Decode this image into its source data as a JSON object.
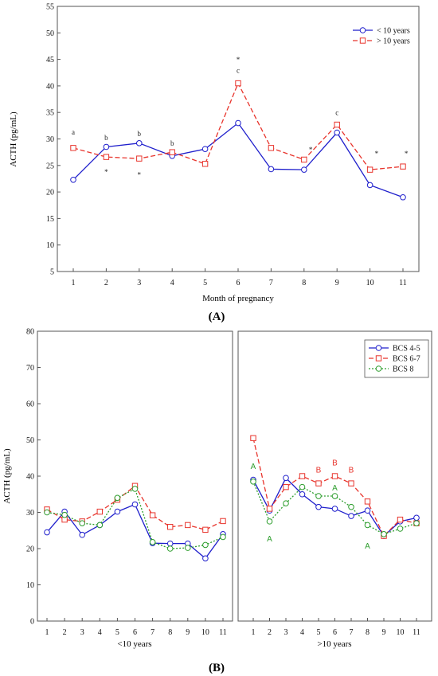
{
  "panel_labels": {
    "a": "(A)",
    "b": "(B)"
  },
  "chart_data": [
    {
      "type": "line",
      "panel": "(A)",
      "xlabel": "Month of pregnancy",
      "ylabel": "ACTH (pg/mL)",
      "ylim": [
        5,
        55
      ],
      "yticks": [
        5,
        10,
        15,
        20,
        25,
        30,
        35,
        40,
        45,
        50,
        55
      ],
      "x": [
        1,
        2,
        3,
        4,
        5,
        6,
        7,
        8,
        9,
        10,
        11
      ],
      "grid": false,
      "legend_position": "top-right",
      "series": [
        {
          "name": "< 10 years",
          "color": "#1f1fcc",
          "dash": "solid",
          "marker": "circle",
          "values": [
            22.3,
            28.5,
            29.2,
            26.8,
            28.1,
            33.0,
            24.3,
            24.2,
            31.2,
            21.3,
            19.0
          ]
        },
        {
          "name": "> 10 years",
          "color": "#e8342c",
          "dash": "dashed",
          "marker": "square",
          "values": [
            28.3,
            26.6,
            26.3,
            27.5,
            25.3,
            40.5,
            28.3,
            26.1,
            32.7,
            24.2,
            24.8
          ]
        }
      ],
      "annotations": [
        {
          "x": 1,
          "y": 30.8,
          "text": "a"
        },
        {
          "x": 2,
          "y": 29.8,
          "text": "b"
        },
        {
          "x": 3,
          "y": 30.5,
          "text": "b"
        },
        {
          "x": 4,
          "y": 28.7,
          "text": "b"
        },
        {
          "x": 6,
          "y": 44.5,
          "text": "*"
        },
        {
          "x": 6,
          "y": 42.5,
          "text": "c"
        },
        {
          "x": 9,
          "y": 34.5,
          "text": "c"
        },
        {
          "x": 2,
          "y": 23.3,
          "text": "*"
        },
        {
          "x": 3,
          "y": 22.8,
          "text": "*"
        },
        {
          "x": 8.2,
          "y": 27.5,
          "text": "*"
        },
        {
          "x": 10.2,
          "y": 26.8,
          "text": "*"
        },
        {
          "x": 11.1,
          "y": 26.8,
          "text": "*"
        }
      ]
    },
    {
      "type": "line",
      "panel": "(B)",
      "xlabel": "<10 years",
      "ylabel": "ACTH (pg/mL)",
      "ylim": [
        0,
        80
      ],
      "yticks": [
        0,
        10,
        20,
        30,
        40,
        50,
        60,
        70,
        80
      ],
      "x": [
        1,
        2,
        3,
        4,
        5,
        6,
        7,
        8,
        9,
        10,
        11
      ],
      "grid": false,
      "series": [
        {
          "name": "BCS 4-5",
          "color": "#1f1fcc",
          "dash": "solid",
          "marker": "circle",
          "values": [
            24.5,
            30.2,
            23.8,
            26.5,
            30.2,
            32.2,
            21.5,
            21.4,
            21.4,
            17.3,
            24.0
          ]
        },
        {
          "name": "BCS 6-7",
          "color": "#e8342c",
          "dash": "dashed",
          "marker": "square",
          "values": [
            30.8,
            28.0,
            27.5,
            30.2,
            33.5,
            37.3,
            29.2,
            26.0,
            26.5,
            25.2,
            27.6
          ]
        },
        {
          "name": "BCS 8",
          "color": "#2e9e2e",
          "dash": "dotted",
          "marker": "circle",
          "values": [
            30.0,
            29.3,
            27.0,
            26.5,
            34.0,
            36.5,
            21.8,
            20.0,
            20.2,
            21.0,
            23.2
          ]
        }
      ],
      "annotations": []
    },
    {
      "type": "line",
      "panel": "(B)",
      "xlabel": ">10 years",
      "ylabel": "",
      "ylim": [
        0,
        80
      ],
      "x": [
        1,
        2,
        3,
        4,
        5,
        6,
        7,
        8,
        9,
        10,
        11
      ],
      "grid": false,
      "legend_position": "top-right",
      "series": [
        {
          "name": "BCS 4-5",
          "color": "#1f1fcc",
          "dash": "solid",
          "marker": "circle",
          "values": [
            39.0,
            30.5,
            39.5,
            35.0,
            31.5,
            31.0,
            29.0,
            30.5,
            23.5,
            27.5,
            28.5
          ]
        },
        {
          "name": "BCS 6-7",
          "color": "#e8342c",
          "dash": "dashed",
          "marker": "square",
          "values": [
            50.5,
            31.0,
            37.0,
            40.0,
            38.0,
            40.0,
            38.0,
            33.0,
            23.5,
            28.0,
            27.0
          ]
        },
        {
          "name": "BCS 8",
          "color": "#2e9e2e",
          "dash": "dotted",
          "marker": "circle",
          "values": [
            38.5,
            27.5,
            32.5,
            37.0,
            34.5,
            34.5,
            31.5,
            26.5,
            24.0,
            25.5,
            27.0
          ]
        }
      ],
      "annotations": [
        {
          "x": 1,
          "y": 42,
          "text": "A",
          "color": "#2e9e2e"
        },
        {
          "x": 2,
          "y": 22,
          "text": "A",
          "color": "#2e9e2e"
        },
        {
          "x": 5,
          "y": 41,
          "text": "B",
          "color": "#e8342c"
        },
        {
          "x": 6,
          "y": 43,
          "text": "B",
          "color": "#e8342c"
        },
        {
          "x": 7,
          "y": 41,
          "text": "B",
          "color": "#e8342c"
        },
        {
          "x": 6,
          "y": 36,
          "text": "A",
          "color": "#2e9e2e"
        },
        {
          "x": 8,
          "y": 20,
          "text": "A",
          "color": "#2e9e2e"
        }
      ]
    }
  ]
}
